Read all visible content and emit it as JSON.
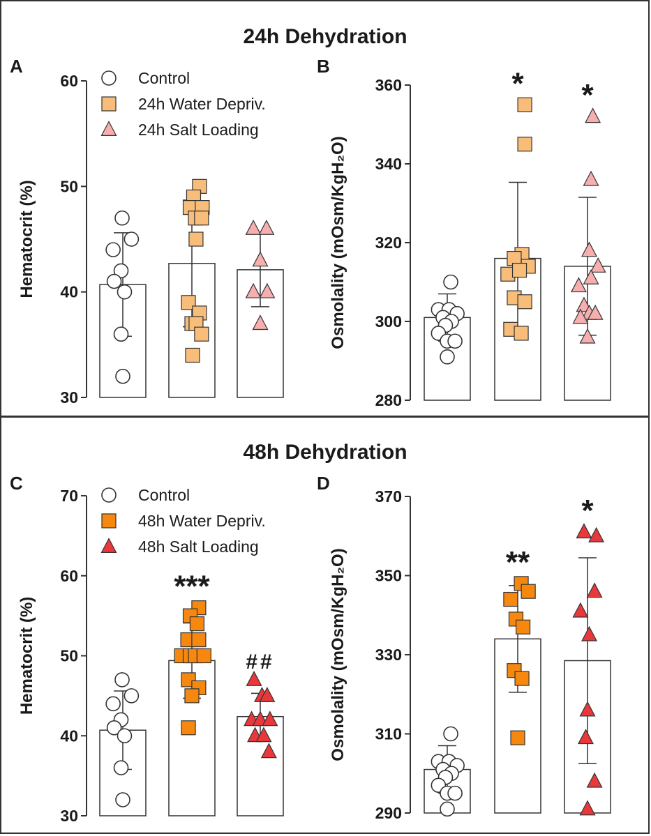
{
  "section_titles": [
    "24h Dehydration",
    "48h Dehydration"
  ],
  "colors": {
    "control_fill": "#ffffff",
    "wd24_fill": "#f9bd7a",
    "sl24_fill": "#f7aeae",
    "wd48_fill": "#f7880f",
    "sl48_fill": "#e8383b",
    "stroke": "#333333",
    "text": "#1a1a1a"
  },
  "chart_data": [
    {
      "panel": "A",
      "type": "bar",
      "section": "24h Dehydration",
      "ylabel": "Hematocrit (%)",
      "ylim": [
        30,
        60
      ],
      "yticks": [
        30,
        40,
        50,
        60
      ],
      "legend": [
        {
          "label": "Control",
          "marker": "circle",
          "fill": "#ffffff"
        },
        {
          "label": "24h Water Depriv.",
          "marker": "square",
          "fill": "#f9bd7a"
        },
        {
          "label": "24h Salt Loading",
          "marker": "triangle",
          "fill": "#f7aeae"
        }
      ],
      "series": [
        {
          "name": "Control",
          "mean": 40.7,
          "sd": 4.9,
          "marker": "circle",
          "fill": "#ffffff",
          "annotation": "",
          "points": [
            [
              -0.02,
              47
            ],
            [
              -0.28,
              44
            ],
            [
              0.25,
              45
            ],
            [
              -0.05,
              42
            ],
            [
              -0.25,
              41
            ],
            [
              0.05,
              40
            ],
            [
              -0.05,
              36
            ],
            [
              0.0,
              32
            ]
          ]
        },
        {
          "name": "24h Water Depriv.",
          "mean": 42.7,
          "sd": 6.0,
          "marker": "square",
          "fill": "#f9bd7a",
          "annotation": "",
          "points": [
            [
              0.22,
              50
            ],
            [
              0.05,
              49
            ],
            [
              -0.05,
              48
            ],
            [
              0.3,
              48
            ],
            [
              0.1,
              47
            ],
            [
              0.28,
              47
            ],
            [
              0.12,
              45
            ],
            [
              -0.1,
              39
            ],
            [
              0.22,
              38
            ],
            [
              0.0,
              37
            ],
            [
              0.12,
              37
            ],
            [
              0.28,
              36
            ],
            [
              0.02,
              34
            ]
          ]
        },
        {
          "name": "24h Salt Loading",
          "mean": 42.1,
          "sd": 3.5,
          "marker": "triangle",
          "fill": "#f7aeae",
          "annotation": "",
          "points": [
            [
              -0.2,
              46
            ],
            [
              0.18,
              46
            ],
            [
              0.0,
              43
            ],
            [
              -0.2,
              40
            ],
            [
              0.2,
              40
            ],
            [
              0.0,
              37
            ]
          ]
        }
      ]
    },
    {
      "panel": "B",
      "type": "bar",
      "section": "24h Dehydration",
      "ylabel": "Osmolality (mOsm/KgH₂O)",
      "ylim": [
        280,
        360
      ],
      "yticks": [
        280,
        300,
        320,
        340,
        360
      ],
      "legend": [],
      "series": [
        {
          "name": "Control",
          "mean": 301,
          "sd": 6,
          "marker": "circle",
          "fill": "#ffffff",
          "annotation": "",
          "points": [
            [
              0.1,
              310
            ],
            [
              -0.25,
              303
            ],
            [
              0.05,
              303
            ],
            [
              0.28,
              302
            ],
            [
              -0.12,
              301
            ],
            [
              0.12,
              300
            ],
            [
              -0.05,
              299
            ],
            [
              -0.25,
              297
            ],
            [
              0.0,
              295
            ],
            [
              0.22,
              295
            ],
            [
              0.0,
              291
            ]
          ]
        },
        {
          "name": "24h Water Depriv.",
          "mean": 316,
          "sd": 19.3,
          "marker": "square",
          "fill": "#f9bd7a",
          "annotation": "*",
          "points": [
            [
              0.2,
              355
            ],
            [
              0.2,
              345
            ],
            [
              0.12,
              317
            ],
            [
              -0.1,
              316
            ],
            [
              0.3,
              314
            ],
            [
              -0.28,
              312
            ],
            [
              0.05,
              313
            ],
            [
              -0.1,
              306
            ],
            [
              0.2,
              305
            ],
            [
              -0.2,
              298
            ],
            [
              0.1,
              297
            ]
          ]
        },
        {
          "name": "24h Salt Loading",
          "mean": 314,
          "sd": 17.5,
          "marker": "triangle",
          "fill": "#f7aeae",
          "annotation": "*",
          "points": [
            [
              0.15,
              352
            ],
            [
              0.1,
              336
            ],
            [
              0.05,
              318
            ],
            [
              0.3,
              314
            ],
            [
              -0.25,
              309
            ],
            [
              0.1,
              311
            ],
            [
              -0.1,
              304
            ],
            [
              0.05,
              302
            ],
            [
              -0.2,
              301
            ],
            [
              0.22,
              302
            ],
            [
              0.0,
              296
            ]
          ]
        }
      ]
    },
    {
      "panel": "C",
      "type": "bar",
      "section": "48h Dehydration",
      "ylabel": "Hematocrit (%)",
      "ylim": [
        30,
        70
      ],
      "yticks": [
        30,
        40,
        50,
        60,
        70
      ],
      "legend": [
        {
          "label": "Control",
          "marker": "circle",
          "fill": "#ffffff"
        },
        {
          "label": "48h Water Depriv.",
          "marker": "square",
          "fill": "#f7880f"
        },
        {
          "label": "48h Salt Loading",
          "marker": "triangle",
          "fill": "#e8383b"
        }
      ],
      "series": [
        {
          "name": "Control",
          "mean": 40.7,
          "sd": 4.9,
          "marker": "circle",
          "fill": "#ffffff",
          "annotation": "",
          "points": [
            [
              -0.02,
              47
            ],
            [
              -0.28,
              44
            ],
            [
              0.25,
              45
            ],
            [
              -0.05,
              42
            ],
            [
              -0.25,
              41
            ],
            [
              0.05,
              40
            ],
            [
              -0.05,
              36
            ],
            [
              0.0,
              32
            ]
          ]
        },
        {
          "name": "48h Water Depriv.",
          "mean": 49.4,
          "sd": 4.7,
          "marker": "square",
          "fill": "#f7880f",
          "annotation": "***",
          "points": [
            [
              0.2,
              56
            ],
            [
              -0.05,
              55
            ],
            [
              0.15,
              54
            ],
            [
              -0.12,
              52
            ],
            [
              0.2,
              52
            ],
            [
              -0.3,
              50
            ],
            [
              -0.05,
              50
            ],
            [
              0.1,
              50
            ],
            [
              0.35,
              50
            ],
            [
              -0.1,
              47
            ],
            [
              0.2,
              46
            ],
            [
              0.0,
              45
            ],
            [
              -0.1,
              41
            ]
          ]
        },
        {
          "name": "48h Salt Loading",
          "mean": 42.4,
          "sd": 2.9,
          "marker": "triangle",
          "fill": "#e8383b",
          "annotation": "##",
          "points": [
            [
              -0.18,
              47
            ],
            [
              0.05,
              45
            ],
            [
              0.2,
              45
            ],
            [
              -0.25,
              42
            ],
            [
              0.0,
              42
            ],
            [
              0.28,
              42
            ],
            [
              -0.15,
              40
            ],
            [
              0.1,
              40
            ],
            [
              0.25,
              38
            ]
          ]
        }
      ]
    },
    {
      "panel": "D",
      "type": "bar",
      "section": "48h Dehydration",
      "ylabel": "Osmolality (mOsm/KgH₂O)",
      "ylim": [
        290,
        370
      ],
      "yticks": [
        290,
        310,
        330,
        350,
        370
      ],
      "legend": [],
      "series": [
        {
          "name": "Control",
          "mean": 301,
          "sd": 6,
          "marker": "circle",
          "fill": "#ffffff",
          "annotation": "",
          "points": [
            [
              0.1,
              310
            ],
            [
              -0.25,
              303
            ],
            [
              0.05,
              303
            ],
            [
              0.28,
              302
            ],
            [
              -0.12,
              301
            ],
            [
              0.12,
              300
            ],
            [
              -0.05,
              299
            ],
            [
              -0.25,
              297
            ],
            [
              0.0,
              295
            ],
            [
              0.22,
              295
            ],
            [
              0.0,
              291
            ]
          ]
        },
        {
          "name": "48h Water Depriv.",
          "mean": 334,
          "sd": 13.5,
          "marker": "square",
          "fill": "#f7880f",
          "annotation": "**",
          "points": [
            [
              0.1,
              348
            ],
            [
              -0.2,
              344
            ],
            [
              0.3,
              346
            ],
            [
              -0.05,
              339
            ],
            [
              0.15,
              337
            ],
            [
              -0.1,
              326
            ],
            [
              0.12,
              324
            ],
            [
              0.0,
              309
            ]
          ]
        },
        {
          "name": "48h Salt Loading",
          "mean": 328.5,
          "sd": 26,
          "marker": "triangle",
          "fill": "#e8383b",
          "annotation": "*",
          "points": [
            [
              -0.1,
              361
            ],
            [
              0.25,
              360
            ],
            [
              0.2,
              346
            ],
            [
              -0.2,
              341
            ],
            [
              0.05,
              335
            ],
            [
              0.0,
              316
            ],
            [
              -0.05,
              309
            ],
            [
              0.2,
              298
            ],
            [
              0.0,
              291
            ]
          ]
        }
      ]
    }
  ]
}
